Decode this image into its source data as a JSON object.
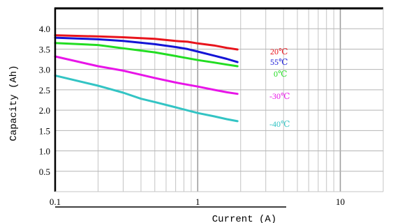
{
  "chart_data": {
    "type": "line",
    "xscale": "log",
    "xlim": [
      0.1,
      20
    ],
    "ylim": [
      0,
      4.5
    ],
    "grid": true,
    "xlabel": "Current (A)",
    "ylabel": "Capacity (Ah)",
    "x_ticks": [
      "0.1",
      "1",
      "10"
    ],
    "y_ticks": [
      "0.5",
      "1.0",
      "1.5",
      "2.0",
      "2.5",
      "3.0",
      "3.5",
      "4.0"
    ],
    "series": [
      {
        "name": "20℃",
        "color": "#e8141c",
        "x": [
          0.1,
          0.2,
          0.3,
          0.5,
          0.7,
          0.85,
          1,
          1.3,
          1.6,
          1.9
        ],
        "y": [
          3.84,
          3.81,
          3.79,
          3.75,
          3.7,
          3.68,
          3.64,
          3.59,
          3.53,
          3.49
        ]
      },
      {
        "name": "55℃",
        "color": "#1414d6",
        "x": [
          0.1,
          0.2,
          0.3,
          0.5,
          0.7,
          0.85,
          1,
          1.3,
          1.6,
          1.9
        ],
        "y": [
          3.78,
          3.74,
          3.7,
          3.62,
          3.55,
          3.5,
          3.44,
          3.34,
          3.26,
          3.18
        ]
      },
      {
        "name": "0℃",
        "color": "#22dd22",
        "x": [
          0.1,
          0.2,
          0.3,
          0.5,
          0.7,
          1,
          1.3,
          1.6,
          1.9
        ],
        "y": [
          3.65,
          3.6,
          3.52,
          3.42,
          3.33,
          3.23,
          3.17,
          3.12,
          3.08
        ]
      },
      {
        "name": "-30℃",
        "color": "#e815e8",
        "x": [
          0.1,
          0.2,
          0.3,
          0.4,
          0.5,
          0.7,
          1,
          1.3,
          1.6,
          1.9
        ],
        "y": [
          3.32,
          3.08,
          2.97,
          2.87,
          2.79,
          2.68,
          2.58,
          2.5,
          2.44,
          2.4
        ]
      },
      {
        "name": "-40℃",
        "color": "#33c4c4",
        "x": [
          0.1,
          0.2,
          0.3,
          0.4,
          0.5,
          0.7,
          1,
          1.3,
          1.6,
          1.9
        ],
        "y": [
          2.85,
          2.6,
          2.43,
          2.28,
          2.2,
          2.07,
          1.93,
          1.85,
          1.78,
          1.73
        ]
      }
    ]
  }
}
